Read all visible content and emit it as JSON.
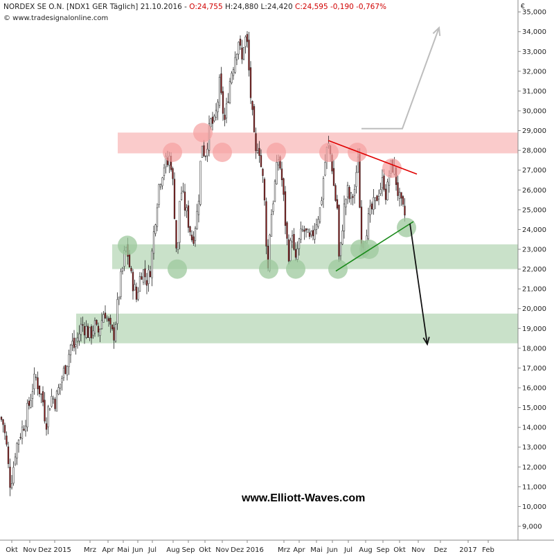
{
  "header": {
    "symbol": "NORDEX SE O.N.",
    "code": "[NDX1 GER",
    "interval": "Täglich]",
    "date": "21.10.2016",
    "open": "O:24,755",
    "high": "H:24,880",
    "low": "L:24,420",
    "close_change": "C:24,595 -0,190 -0,767%",
    "source": "© www.tradesignalonline.com"
  },
  "currency": "€",
  "watermark": "www.Elliott-Waves.com",
  "colors": {
    "candle_up": "#ffffff",
    "candle_down": "#8b1a1a",
    "resistance_zone": "#f5a0a0",
    "support_zone": "#9cc89c",
    "red_line": "#e00000",
    "green_line": "#1a8a1a",
    "up_arrow": "#bdbdbd",
    "down_arrow": "#111111"
  },
  "chart_data": {
    "type": "candlestick",
    "x_tick_labels": [
      "Okt",
      "Nov",
      "Dez 2015",
      "Mrz",
      "Apr",
      "Mai",
      "Jun",
      "Jul",
      "Aug",
      "Sep",
      "Okt",
      "Nov",
      "Dez 2016",
      "Mrz",
      "Apr",
      "Mai",
      "Jun",
      "Jul",
      "Aug",
      "Sep",
      "Okt",
      "Nov",
      "Dez",
      "2017",
      "Feb"
    ],
    "y_tick_labels": [
      "9,000",
      "10,000",
      "11,000",
      "12,000",
      "13,000",
      "14,000",
      "15,000",
      "16,000",
      "17,000",
      "18,000",
      "19,000",
      "20,000",
      "21,000",
      "22,000",
      "23,000",
      "24,000",
      "25,000",
      "26,000",
      "27,000",
      "28,000",
      "29,000",
      "30,000",
      "31,000",
      "32,000",
      "33,000",
      "34,000",
      "35,000"
    ],
    "y_range": [
      8.3,
      35.6
    ],
    "price_path": [
      [
        0,
        14.5
      ],
      [
        4,
        14.3
      ],
      [
        9,
        13.2
      ],
      [
        14,
        11.2
      ],
      [
        18,
        11.6
      ],
      [
        22,
        12.8
      ],
      [
        27,
        13.5
      ],
      [
        33,
        14.0
      ],
      [
        38,
        14.6
      ],
      [
        43,
        15.3
      ],
      [
        48,
        16.2
      ],
      [
        52,
        16.5
      ],
      [
        57,
        15.9
      ],
      [
        63,
        15.2
      ],
      [
        66,
        14.1
      ],
      [
        70,
        15.0
      ],
      [
        75,
        15.6
      ],
      [
        80,
        15.3
      ],
      [
        86,
        16.1
      ],
      [
        92,
        16.8
      ],
      [
        98,
        17.5
      ],
      [
        103,
        18.3
      ],
      [
        108,
        18.0
      ],
      [
        113,
        18.6
      ],
      [
        118,
        19.2
      ],
      [
        124,
        19.0
      ],
      [
        130,
        18.6
      ],
      [
        136,
        19.2
      ],
      [
        141,
        18.7
      ],
      [
        146,
        19.3
      ],
      [
        151,
        20.0
      ],
      [
        155,
        19.4
      ],
      [
        160,
        18.8
      ],
      [
        164,
        18.6
      ],
      [
        167,
        19.4
      ],
      [
        171,
        20.5
      ],
      [
        175,
        21.6
      ],
      [
        178,
        22.2
      ],
      [
        181,
        23.1
      ],
      [
        185,
        22.7
      ],
      [
        189,
        21.6
      ],
      [
        193,
        21.2
      ],
      [
        197,
        20.5
      ],
      [
        201,
        21.4
      ],
      [
        205,
        22.0
      ],
      [
        209,
        21.7
      ],
      [
        213,
        21.4
      ],
      [
        218,
        22.2
      ],
      [
        222,
        23.8
      ],
      [
        226,
        25.2
      ],
      [
        230,
        26.4
      ],
      [
        234,
        26.9
      ],
      [
        238,
        27.4
      ],
      [
        242,
        27.3
      ],
      [
        246,
        27.8
      ],
      [
        250,
        26.1
      ],
      [
        253,
        24.3
      ],
      [
        256,
        22.0
      ],
      [
        259,
        25.4
      ],
      [
        262,
        25.9
      ],
      [
        266,
        25.3
      ],
      [
        270,
        24.7
      ],
      [
        274,
        24.1
      ],
      [
        278,
        23.4
      ],
      [
        282,
        24.3
      ],
      [
        286,
        25.1
      ],
      [
        289,
        27.1
      ],
      [
        292,
        28.4
      ],
      [
        296,
        27.7
      ],
      [
        300,
        28.6
      ],
      [
        305,
        29.5
      ],
      [
        309,
        29.2
      ],
      [
        313,
        30.1
      ],
      [
        317,
        31.3
      ],
      [
        321,
        30.2
      ],
      [
        325,
        29.4
      ],
      [
        329,
        30.7
      ],
      [
        333,
        31.8
      ],
      [
        337,
        32.4
      ],
      [
        341,
        33.1
      ],
      [
        345,
        33.7
      ],
      [
        349,
        32.3
      ],
      [
        353,
        33.8
      ],
      [
        357,
        33.3
      ],
      [
        361,
        31.2
      ],
      [
        365,
        29.4
      ],
      [
        369,
        27.6
      ],
      [
        373,
        28.6
      ],
      [
        377,
        27.2
      ],
      [
        381,
        26.1
      ],
      [
        384,
        23.8
      ],
      [
        387,
        22.0
      ],
      [
        390,
        24.3
      ],
      [
        394,
        25.4
      ],
      [
        398,
        26.6
      ],
      [
        402,
        27.6
      ],
      [
        406,
        26.9
      ],
      [
        410,
        25.3
      ],
      [
        414,
        23.5
      ],
      [
        418,
        22.6
      ],
      [
        422,
        24.0
      ],
      [
        426,
        22.0
      ],
      [
        430,
        23.1
      ],
      [
        434,
        23.6
      ],
      [
        438,
        24.0
      ],
      [
        443,
        23.7
      ],
      [
        448,
        23.3
      ],
      [
        453,
        24.0
      ],
      [
        458,
        24.6
      ],
      [
        463,
        25.1
      ],
      [
        467,
        26.6
      ],
      [
        471,
        27.9
      ],
      [
        475,
        28.2
      ],
      [
        479,
        27.4
      ],
      [
        483,
        25.8
      ],
      [
        487,
        25.1
      ],
      [
        490,
        22.0
      ],
      [
        494,
        24.1
      ],
      [
        498,
        25.4
      ],
      [
        502,
        25.9
      ],
      [
        506,
        25.4
      ],
      [
        510,
        25.8
      ],
      [
        514,
        26.3
      ],
      [
        517,
        27.9
      ],
      [
        520,
        24.6
      ],
      [
        523,
        23.1
      ],
      [
        526,
        23.6
      ],
      [
        530,
        24.2
      ],
      [
        534,
        24.7
      ],
      [
        538,
        25.1
      ],
      [
        542,
        25.3
      ],
      [
        546,
        25.9
      ],
      [
        550,
        26.2
      ],
      [
        554,
        26.5
      ],
      [
        558,
        25.6
      ],
      [
        562,
        26.8
      ],
      [
        566,
        27.3
      ],
      [
        570,
        26.9
      ],
      [
        574,
        26.0
      ],
      [
        578,
        25.3
      ],
      [
        582,
        24.9
      ],
      [
        586,
        24.6
      ]
    ],
    "annotations": {
      "resistance_zone": [
        27.85,
        28.9
      ],
      "support_zone_1": [
        22.0,
        23.25
      ],
      "support_zone_2": [
        18.25,
        19.75
      ],
      "red_trendline": [
        [
          474,
          28.5
        ],
        [
          602,
          26.8
        ]
      ],
      "green_trendline": [
        [
          485,
          21.9
        ],
        [
          597,
          24.4
        ]
      ],
      "up_arrow_path": [
        [
          522,
          29.1
        ],
        [
          581,
          29.1
        ],
        [
          634,
          34.2
        ]
      ],
      "down_arrow_path": [
        [
          592,
          24.3
        ],
        [
          617,
          18.2
        ]
      ],
      "red_circles": [
        [
          249,
          27.9
        ],
        [
          293,
          28.9
        ],
        [
          321,
          27.9
        ],
        [
          399,
          27.9
        ],
        [
          475,
          27.9
        ],
        [
          516,
          27.9
        ],
        [
          566,
          27.1
        ]
      ],
      "green_circles": [
        [
          184,
          23.2
        ],
        [
          256,
          22.0
        ],
        [
          388,
          22.0
        ],
        [
          427,
          22.0
        ],
        [
          488,
          22.0
        ],
        [
          520,
          23.0
        ],
        [
          533,
          23.0
        ],
        [
          587,
          24.1
        ]
      ]
    }
  }
}
